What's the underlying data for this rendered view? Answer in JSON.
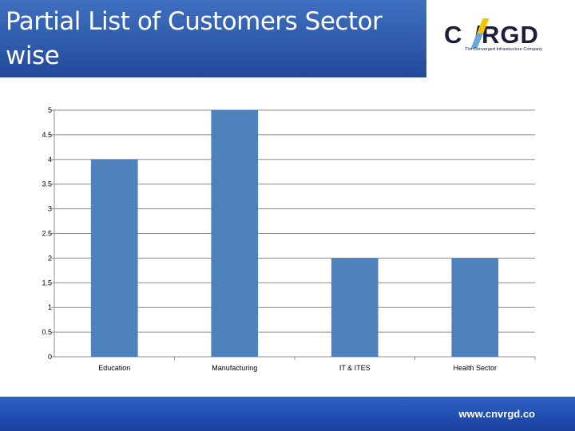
{
  "slide": {
    "title": "Partial List of Customers Sector wise"
  },
  "logo": {
    "name": "CNVRGD",
    "tagline": "The Converged Infrastructure Company"
  },
  "footer": {
    "url": "www.cnvrgd.co"
  },
  "colors": {
    "bar": "#4f81bd",
    "title_bg": "#2f5cab",
    "footer_bg": "#1f4db2"
  },
  "chart_data": {
    "type": "bar",
    "categories": [
      "Education",
      "Manufacturing",
      "IT & ITES",
      "Health Sector"
    ],
    "values": [
      4,
      5,
      2,
      2
    ],
    "ylim": [
      0,
      5
    ],
    "yticks": [
      "0",
      "0.5",
      "1",
      "1.5",
      "2",
      "2.5",
      "3",
      "3.5",
      "4",
      "4.5",
      "5"
    ],
    "grid": true,
    "legend": "none"
  }
}
